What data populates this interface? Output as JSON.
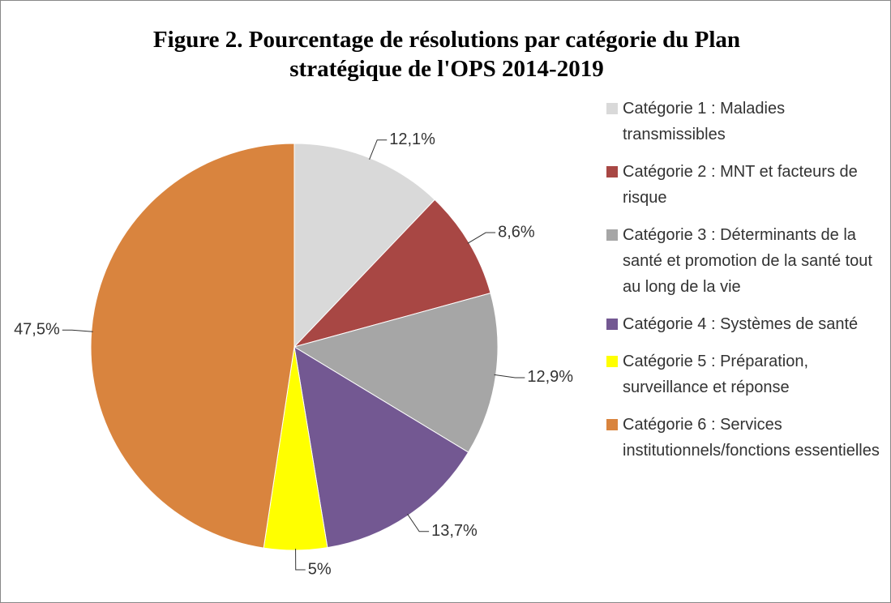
{
  "chart_data": {
    "type": "pie",
    "title": "Figure 2. Pourcentage de résolutions par catégorie du Plan stratégique de l'OPS 2014-2019",
    "categories": [
      "Catégorie 1 : Maladies transmissibles",
      "Catégorie 2 : MNT et facteurs de risque",
      "Catégorie 3 : Déterminants de la santé et promotion de la santé tout au long de la vie",
      "Catégorie 4 : Systèmes de santé",
      "Catégorie 5 : Préparation, surveillance et réponse",
      "Catégorie 6 : Services institutionnels/fonctions essentielles"
    ],
    "values": [
      12.1,
      8.6,
      12.9,
      13.7,
      5,
      47.5
    ],
    "value_labels": [
      "12,1%",
      "8,6%",
      "12,9%",
      "13,7%",
      "5%",
      "47,5%"
    ],
    "colors": [
      "#d9d9d9",
      "#a84744",
      "#a6a6a6",
      "#735892",
      "#ffff00",
      "#d9843e"
    ],
    "legend": "right"
  }
}
